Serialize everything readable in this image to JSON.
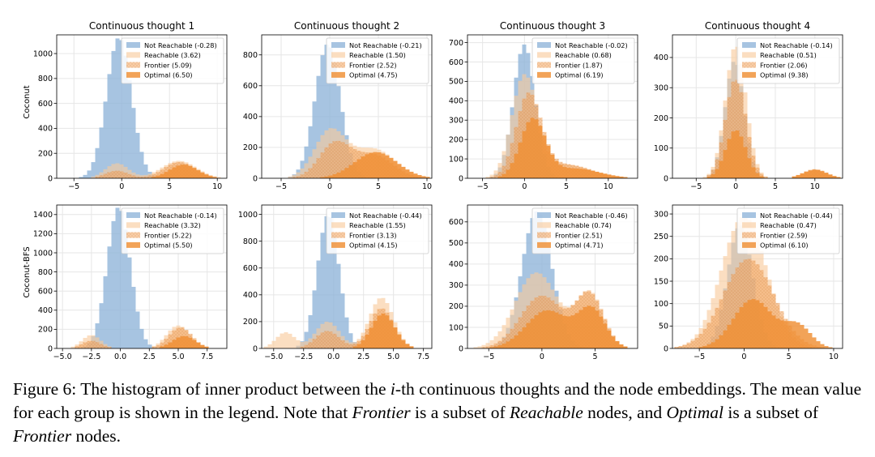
{
  "colors": {
    "not_reachable": "#8eb4d9",
    "reachable": "#f9c99b",
    "frontier": "#f3a45e",
    "optimal": "#ef8f33",
    "axis": "#000000",
    "grid": "#e6e6e6"
  },
  "row_labels": [
    "Coconut",
    "Coconut-BFS"
  ],
  "chart_data": [
    {
      "type": "bar",
      "title": "Continuous thought 1",
      "row": 0,
      "col": 0,
      "xlim": [
        -6.8,
        11
      ],
      "ylim": [
        0,
        1150
      ],
      "xticks": [
        -5,
        0,
        5,
        10
      ],
      "xtick_labels": [
        "−5",
        "0",
        "5",
        "10"
      ],
      "yticks": [
        0,
        200,
        400,
        600,
        800,
        1000
      ],
      "ytick_labels": [
        "0",
        "200",
        "400",
        "600",
        "800",
        "1000"
      ],
      "grid": true,
      "legend_position": "top-right",
      "series": [
        {
          "name": "Not Reachable (-0.28)",
          "key": "not_reachable",
          "mean": -0.28,
          "sigma": 1.3,
          "peak": 1130,
          "hist": "bar"
        },
        {
          "name": "Reachable (3.62)",
          "key": "reachable",
          "modes": [
            {
              "mu": -0.5,
              "sigma": 1.2,
              "peak": 120
            },
            {
              "mu": 6.0,
              "sigma": 1.8,
              "peak": 140
            }
          ],
          "hist": "bar"
        },
        {
          "name": "Frontier (5.09)",
          "key": "frontier",
          "modes": [
            {
              "mu": -0.5,
              "sigma": 1.2,
              "peak": 60
            },
            {
              "mu": 6.0,
              "sigma": 1.6,
              "peak": 130
            }
          ],
          "hist": "bar"
        },
        {
          "name": "Optimal (6.50)",
          "key": "optimal",
          "modes": [
            {
              "mu": 6.5,
              "sigma": 1.5,
              "peak": 110
            }
          ],
          "hist": "bar"
        }
      ]
    },
    {
      "type": "bar",
      "title": "Continuous thought 2",
      "row": 0,
      "col": 1,
      "xlim": [
        -7,
        10.5
      ],
      "ylim": [
        0,
        930
      ],
      "xticks": [
        -5,
        0,
        5,
        10
      ],
      "xtick_labels": [
        "−5",
        "0",
        "5",
        "10"
      ],
      "yticks": [
        0,
        200,
        400,
        600,
        800
      ],
      "ytick_labels": [
        "0",
        "200",
        "400",
        "600",
        "800"
      ],
      "grid": true,
      "legend_position": "top-right",
      "series": [
        {
          "name": "Not Reachable (-0.21)",
          "key": "not_reachable",
          "mean": -0.21,
          "sigma": 1.3,
          "peak": 870,
          "hist": "bar"
        },
        {
          "name": "Reachable (1.50)",
          "key": "reachable",
          "modes": [
            {
              "mu": 0.0,
              "sigma": 1.6,
              "peak": 300
            },
            {
              "mu": 4.5,
              "sigma": 2.2,
              "peak": 190
            }
          ],
          "hist": "bar"
        },
        {
          "name": "Frontier (2.52)",
          "key": "frontier",
          "modes": [
            {
              "mu": 0.5,
              "sigma": 1.6,
              "peak": 220
            },
            {
              "mu": 4.5,
              "sigma": 2.0,
              "peak": 150
            }
          ],
          "hist": "bar"
        },
        {
          "name": "Optimal (4.75)",
          "key": "optimal",
          "modes": [
            {
              "mu": 4.75,
              "sigma": 2.2,
              "peak": 170
            }
          ],
          "hist": "bar"
        }
      ]
    },
    {
      "type": "bar",
      "title": "Continuous thought 3",
      "row": 0,
      "col": 2,
      "xlim": [
        -6.8,
        13.5
      ],
      "ylim": [
        0,
        740
      ],
      "xticks": [
        -5,
        0,
        5,
        10
      ],
      "xtick_labels": [
        "−5",
        "0",
        "5",
        "10"
      ],
      "yticks": [
        0,
        100,
        200,
        300,
        400,
        500,
        600,
        700
      ],
      "ytick_labels": [
        "0",
        "100",
        "200",
        "300",
        "400",
        "500",
        "600",
        "700"
      ],
      "grid": true,
      "legend_position": "top-right",
      "series": [
        {
          "name": "Not Reachable (-0.02)",
          "key": "not_reachable",
          "mean": -0.02,
          "sigma": 1.3,
          "peak": 690,
          "hist": "bar"
        },
        {
          "name": "Reachable (0.68)",
          "key": "reachable",
          "modes": [
            {
              "mu": 0.0,
              "sigma": 1.5,
              "peak": 520
            },
            {
              "mu": 5.0,
              "sigma": 3.0,
              "peak": 70
            }
          ],
          "hist": "bar"
        },
        {
          "name": "Frontier (1.87)",
          "key": "frontier",
          "modes": [
            {
              "mu": 0.5,
              "sigma": 1.5,
              "peak": 420
            },
            {
              "mu": 5.0,
              "sigma": 3.0,
              "peak": 70
            }
          ],
          "hist": "bar"
        },
        {
          "name": "Optimal (6.19)",
          "key": "optimal",
          "modes": [
            {
              "mu": 1.0,
              "sigma": 1.5,
              "peak": 300
            },
            {
              "mu": 6.0,
              "sigma": 3.0,
              "peak": 50
            }
          ],
          "hist": "bar"
        }
      ]
    },
    {
      "type": "bar",
      "title": "Continuous thought 4",
      "row": 0,
      "col": 3,
      "xlim": [
        -8,
        13.5
      ],
      "ylim": [
        0,
        475
      ],
      "xticks": [
        -5,
        0,
        5,
        10
      ],
      "xtick_labels": [
        "−5",
        "0",
        "5",
        "10"
      ],
      "yticks": [
        0,
        100,
        200,
        300,
        400
      ],
      "ytick_labels": [
        "0",
        "100",
        "200",
        "300",
        "400"
      ],
      "grid": true,
      "legend_position": "top-right",
      "series": [
        {
          "name": "Not Reachable (-0.14)",
          "key": "not_reachable",
          "mean": -0.14,
          "sigma": 1.2,
          "peak": 390,
          "hist": "bar"
        },
        {
          "name": "Reachable (0.51)",
          "key": "reachable",
          "modes": [
            {
              "mu": 0.0,
              "sigma": 1.3,
              "peak": 440
            },
            {
              "mu": 10.0,
              "sigma": 1.5,
              "peak": 30
            }
          ],
          "hist": "bar"
        },
        {
          "name": "Frontier (2.06)",
          "key": "frontier",
          "modes": [
            {
              "mu": 0.0,
              "sigma": 1.3,
              "peak": 330
            },
            {
              "mu": 10.0,
              "sigma": 1.5,
              "peak": 30
            }
          ],
          "hist": "bar"
        },
        {
          "name": "Optimal (9.38)",
          "key": "optimal",
          "modes": [
            {
              "mu": 0.0,
              "sigma": 1.3,
              "peak": 160
            },
            {
              "mu": 10.0,
              "sigma": 1.5,
              "peak": 28
            }
          ],
          "hist": "bar"
        }
      ]
    },
    {
      "type": "bar",
      "title": "",
      "row": 1,
      "col": 0,
      "xlim": [
        -5.5,
        9.2
      ],
      "ylim": [
        0,
        1500
      ],
      "xticks": [
        -5,
        -2.5,
        0,
        2.5,
        5,
        7.5
      ],
      "xtick_labels": [
        "−5.0",
        "−2.5",
        "0.0",
        "2.5",
        "5.0",
        "7.5"
      ],
      "yticks": [
        0,
        200,
        400,
        600,
        800,
        1000,
        1200,
        1400
      ],
      "ytick_labels": [
        "0",
        "200",
        "400",
        "600",
        "800",
        "1000",
        "1200",
        "1400"
      ],
      "grid": true,
      "legend_position": "top-right",
      "series": [
        {
          "name": "Not Reachable (-0.14)",
          "key": "not_reachable",
          "mean": -0.14,
          "sigma": 1.0,
          "peak": 1480,
          "hist": "bar"
        },
        {
          "name": "Reachable (3.32)",
          "key": "reachable",
          "modes": [
            {
              "mu": -2.5,
              "sigma": 0.8,
              "peak": 140
            },
            {
              "mu": 5.0,
              "sigma": 1.0,
              "peak": 240
            }
          ],
          "hist": "bar"
        },
        {
          "name": "Frontier (5.22)",
          "key": "frontier",
          "modes": [
            {
              "mu": -2.5,
              "sigma": 0.8,
              "peak": 80
            },
            {
              "mu": 5.2,
              "sigma": 1.0,
              "peak": 220
            }
          ],
          "hist": "bar"
        },
        {
          "name": "Optimal (5.50)",
          "key": "optimal",
          "modes": [
            {
              "mu": 5.5,
              "sigma": 1.0,
              "peak": 130
            }
          ],
          "hist": "bar"
        }
      ]
    },
    {
      "type": "bar",
      "title": "",
      "row": 1,
      "col": 1,
      "xlim": [
        -6,
        8.2
      ],
      "ylim": [
        0,
        1070
      ],
      "xticks": [
        -5,
        -2.5,
        0,
        2.5,
        5,
        7.5
      ],
      "xtick_labels": [
        "−5.0",
        "−2.5",
        "0.0",
        "2.5",
        "5.0",
        "7.5"
      ],
      "yticks": [
        0,
        200,
        400,
        600,
        800,
        1000
      ],
      "ytick_labels": [
        "0",
        "200",
        "400",
        "600",
        "800",
        "1000"
      ],
      "grid": true,
      "legend_position": "top-right",
      "series": [
        {
          "name": "Not Reachable (-0.44)",
          "key": "not_reachable",
          "mean": -0.44,
          "sigma": 0.9,
          "peak": 1000,
          "hist": "bar"
        },
        {
          "name": "Reachable (1.55)",
          "key": "reachable",
          "modes": [
            {
              "mu": -4.0,
              "sigma": 0.8,
              "peak": 120
            },
            {
              "mu": -0.5,
              "sigma": 1.0,
              "peak": 200
            },
            {
              "mu": 4.0,
              "sigma": 1.0,
              "peak": 380
            }
          ],
          "hist": "bar"
        },
        {
          "name": "Frontier (3.13)",
          "key": "frontier",
          "modes": [
            {
              "mu": -0.5,
              "sigma": 1.0,
              "peak": 130
            },
            {
              "mu": 4.0,
              "sigma": 1.0,
              "peak": 300
            }
          ],
          "hist": "bar"
        },
        {
          "name": "Optimal (4.15)",
          "key": "optimal",
          "modes": [
            {
              "mu": 4.15,
              "sigma": 1.0,
              "peak": 260
            }
          ],
          "hist": "bar"
        }
      ]
    },
    {
      "type": "bar",
      "title": "",
      "row": 1,
      "col": 2,
      "xlim": [
        -7,
        9
      ],
      "ylim": [
        0,
        680
      ],
      "xticks": [
        -5,
        0,
        5
      ],
      "xtick_labels": [
        "−5",
        "0",
        "5"
      ],
      "yticks": [
        0,
        100,
        200,
        300,
        400,
        500,
        600
      ],
      "ytick_labels": [
        "0",
        "100",
        "200",
        "300",
        "400",
        "500",
        "600"
      ],
      "grid": true,
      "legend_position": "top-right",
      "series": [
        {
          "name": "Not Reachable (-0.46)",
          "key": "not_reachable",
          "mean": -0.46,
          "sigma": 1.4,
          "peak": 650,
          "hist": "bar"
        },
        {
          "name": "Reachable (0.74)",
          "key": "reachable",
          "modes": [
            {
              "mu": -0.5,
              "sigma": 2.0,
              "peak": 360
            },
            {
              "mu": 4.5,
              "sigma": 1.3,
              "peak": 260
            }
          ],
          "hist": "bar"
        },
        {
          "name": "Frontier (2.51)",
          "key": "frontier",
          "modes": [
            {
              "mu": 0.0,
              "sigma": 2.0,
              "peak": 250
            },
            {
              "mu": 4.5,
              "sigma": 1.3,
              "peak": 250
            }
          ],
          "hist": "bar"
        },
        {
          "name": "Optimal (4.71)",
          "key": "optimal",
          "modes": [
            {
              "mu": 0.5,
              "sigma": 2.0,
              "peak": 180
            },
            {
              "mu": 4.7,
              "sigma": 1.3,
              "peak": 180
            }
          ],
          "hist": "bar"
        }
      ]
    },
    {
      "type": "bar",
      "title": "",
      "row": 1,
      "col": 3,
      "xlim": [
        -8,
        11
      ],
      "ylim": [
        0,
        320
      ],
      "xticks": [
        -5,
        0,
        5,
        10
      ],
      "xtick_labels": [
        "−5",
        "0",
        "5",
        "10"
      ],
      "yticks": [
        0,
        50,
        100,
        150,
        200,
        250,
        300
      ],
      "ytick_labels": [
        "0",
        "50",
        "100",
        "150",
        "200",
        "250",
        "300"
      ],
      "grid": true,
      "legend_position": "top-right",
      "series": [
        {
          "name": "Not Reachable (-0.44)",
          "key": "not_reachable",
          "mean": -0.44,
          "sigma": 1.4,
          "peak": 275,
          "hist": "bar"
        },
        {
          "name": "Reachable (0.47)",
          "key": "reachable",
          "modes": [
            {
              "mu": 0.0,
              "sigma": 2.5,
              "peak": 295
            }
          ],
          "hist": "bar"
        },
        {
          "name": "Frontier (2.59)",
          "key": "frontier",
          "modes": [
            {
              "mu": 0.5,
              "sigma": 2.8,
              "peak": 200
            }
          ],
          "hist": "bar"
        },
        {
          "name": "Optimal (6.10)",
          "key": "optimal",
          "modes": [
            {
              "mu": 1.0,
              "sigma": 2.2,
              "peak": 110
            },
            {
              "mu": 6.0,
              "sigma": 1.5,
              "peak": 50
            }
          ],
          "hist": "bar"
        }
      ]
    }
  ],
  "caption": {
    "p1": "Figure 6:  The histogram of inner product between the ",
    "math": "i",
    "p2": "-th continuous thoughts and the node embeddings. The mean value for each group is shown in the legend. Note that ",
    "e1": "Frontier",
    "p3": " is a subset of ",
    "e2": "Reachable",
    "p4": " nodes, and ",
    "e3": "Optimal",
    "p5": " is a subset of ",
    "e4": "Frontier",
    "p6": " nodes."
  }
}
